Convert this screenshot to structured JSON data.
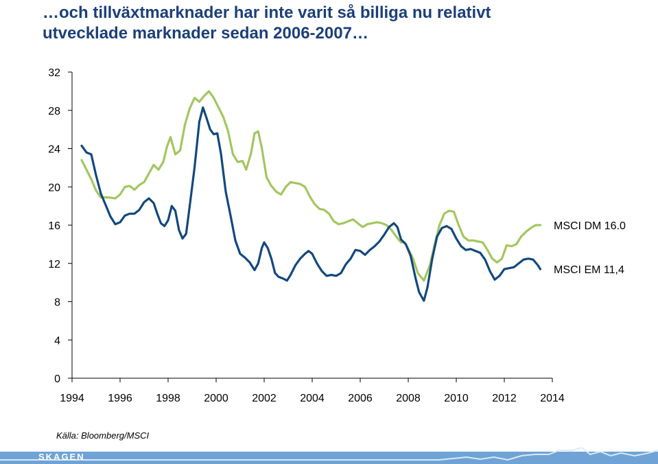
{
  "slide": {
    "title_line1": "…och tillväxtmarknader har inte varit så billiga nu relativt",
    "title_line2": "utvecklade marknader sedan 2006-2007…",
    "source": "Källa: Bloomberg/MSCI",
    "logo": "SKAGEN"
  },
  "colors": {
    "title": "#1b3f7a",
    "dm_line": "#a3c65f",
    "em_line": "#12487f",
    "footer_band": "#6fa3d6"
  },
  "chart_data": {
    "type": "line",
    "title": "",
    "xlabel": "",
    "ylabel": "",
    "xlim": [
      1994,
      2014
    ],
    "ylim": [
      0,
      32
    ],
    "x_ticks": [
      "1994",
      "1996",
      "1998",
      "2000",
      "2002",
      "2004",
      "2006",
      "2008",
      "2010",
      "2012",
      "2014"
    ],
    "y_ticks": [
      "0",
      "4",
      "8",
      "12",
      "16",
      "20",
      "24",
      "28",
      "32"
    ],
    "grid": false,
    "legend": "end-of-line labels, right",
    "series": [
      {
        "name": "MSCI DM 16.0",
        "color": "#a3c65f",
        "points": [
          [
            1994.4,
            22.8
          ],
          [
            1994.6,
            21.8
          ],
          [
            1994.8,
            20.8
          ],
          [
            1995.0,
            19.6
          ],
          [
            1995.2,
            18.9
          ],
          [
            1995.5,
            18.9
          ],
          [
            1995.8,
            18.8
          ],
          [
            1996.0,
            19.2
          ],
          [
            1996.2,
            20.0
          ],
          [
            1996.4,
            20.1
          ],
          [
            1996.6,
            19.7
          ],
          [
            1996.8,
            20.2
          ],
          [
            1997.0,
            20.5
          ],
          [
            1997.2,
            21.4
          ],
          [
            1997.4,
            22.3
          ],
          [
            1997.6,
            21.8
          ],
          [
            1997.8,
            22.6
          ],
          [
            1997.95,
            24.2
          ],
          [
            1998.1,
            25.2
          ],
          [
            1998.3,
            23.4
          ],
          [
            1998.5,
            23.8
          ],
          [
            1998.7,
            26.5
          ],
          [
            1998.9,
            28.2
          ],
          [
            1999.1,
            29.3
          ],
          [
            1999.3,
            28.9
          ],
          [
            1999.5,
            29.5
          ],
          [
            1999.7,
            30.0
          ],
          [
            1999.9,
            29.3
          ],
          [
            2000.1,
            28.3
          ],
          [
            2000.3,
            27.3
          ],
          [
            2000.5,
            25.8
          ],
          [
            2000.7,
            23.4
          ],
          [
            2000.9,
            22.6
          ],
          [
            2001.1,
            22.7
          ],
          [
            2001.25,
            21.8
          ],
          [
            2001.45,
            23.5
          ],
          [
            2001.6,
            25.6
          ],
          [
            2001.75,
            25.8
          ],
          [
            2001.9,
            24.1
          ],
          [
            2002.1,
            21.0
          ],
          [
            2002.3,
            20.1
          ],
          [
            2002.5,
            19.5
          ],
          [
            2002.7,
            19.2
          ],
          [
            2002.9,
            20.0
          ],
          [
            2003.1,
            20.5
          ],
          [
            2003.3,
            20.4
          ],
          [
            2003.5,
            20.3
          ],
          [
            2003.7,
            20.0
          ],
          [
            2003.9,
            19.0
          ],
          [
            2004.1,
            18.2
          ],
          [
            2004.3,
            17.7
          ],
          [
            2004.5,
            17.6
          ],
          [
            2004.7,
            17.2
          ],
          [
            2004.9,
            16.4
          ],
          [
            2005.1,
            16.1
          ],
          [
            2005.3,
            16.2
          ],
          [
            2005.5,
            16.4
          ],
          [
            2005.7,
            16.6
          ],
          [
            2005.9,
            16.2
          ],
          [
            2006.1,
            15.8
          ],
          [
            2006.3,
            16.1
          ],
          [
            2006.5,
            16.2
          ],
          [
            2006.7,
            16.3
          ],
          [
            2006.9,
            16.2
          ],
          [
            2007.1,
            16.0
          ],
          [
            2007.3,
            15.5
          ],
          [
            2007.5,
            14.8
          ],
          [
            2007.7,
            14.2
          ],
          [
            2007.85,
            14.2
          ],
          [
            2008.0,
            13.5
          ],
          [
            2008.2,
            12.5
          ],
          [
            2008.4,
            11.0
          ],
          [
            2008.65,
            10.2
          ],
          [
            2008.9,
            11.8
          ],
          [
            2009.1,
            14.0
          ],
          [
            2009.3,
            16.0
          ],
          [
            2009.5,
            17.2
          ],
          [
            2009.7,
            17.5
          ],
          [
            2009.9,
            17.4
          ],
          [
            2010.1,
            16.0
          ],
          [
            2010.3,
            14.8
          ],
          [
            2010.5,
            14.4
          ],
          [
            2010.7,
            14.4
          ],
          [
            2010.9,
            14.3
          ],
          [
            2011.1,
            14.2
          ],
          [
            2011.3,
            13.4
          ],
          [
            2011.5,
            12.5
          ],
          [
            2011.7,
            12.1
          ],
          [
            2011.9,
            12.5
          ],
          [
            2012.1,
            13.9
          ],
          [
            2012.3,
            13.8
          ],
          [
            2012.5,
            14.0
          ],
          [
            2012.7,
            14.8
          ],
          [
            2012.9,
            15.3
          ],
          [
            2013.1,
            15.7
          ],
          [
            2013.3,
            16.0
          ],
          [
            2013.5,
            16.0
          ]
        ]
      },
      {
        "name": "MSCI EM 11,4",
        "color": "#12487f",
        "points": [
          [
            1994.4,
            24.3
          ],
          [
            1994.6,
            23.6
          ],
          [
            1994.8,
            23.4
          ],
          [
            1995.0,
            21.2
          ],
          [
            1995.2,
            19.3
          ],
          [
            1995.4,
            18.1
          ],
          [
            1995.6,
            16.9
          ],
          [
            1995.8,
            16.1
          ],
          [
            1996.0,
            16.3
          ],
          [
            1996.2,
            17.0
          ],
          [
            1996.4,
            17.2
          ],
          [
            1996.6,
            17.2
          ],
          [
            1996.8,
            17.6
          ],
          [
            1997.0,
            18.4
          ],
          [
            1997.2,
            18.8
          ],
          [
            1997.4,
            18.3
          ],
          [
            1997.55,
            17.2
          ],
          [
            1997.7,
            16.2
          ],
          [
            1997.85,
            15.9
          ],
          [
            1998.0,
            16.5
          ],
          [
            1998.15,
            18.0
          ],
          [
            1998.3,
            17.5
          ],
          [
            1998.45,
            15.5
          ],
          [
            1998.6,
            14.6
          ],
          [
            1998.75,
            15.1
          ],
          [
            1998.9,
            18.0
          ],
          [
            1999.1,
            22.0
          ],
          [
            1999.3,
            26.8
          ],
          [
            1999.45,
            28.3
          ],
          [
            1999.6,
            27.2
          ],
          [
            1999.75,
            26.0
          ],
          [
            1999.9,
            25.5
          ],
          [
            2000.05,
            25.6
          ],
          [
            2000.2,
            23.5
          ],
          [
            2000.4,
            19.5
          ],
          [
            2000.6,
            17.0
          ],
          [
            2000.8,
            14.4
          ],
          [
            2001.0,
            13.0
          ],
          [
            2001.2,
            12.6
          ],
          [
            2001.4,
            12.1
          ],
          [
            2001.6,
            11.3
          ],
          [
            2001.75,
            12.0
          ],
          [
            2001.9,
            13.6
          ],
          [
            2002.0,
            14.2
          ],
          [
            2002.15,
            13.6
          ],
          [
            2002.3,
            12.5
          ],
          [
            2002.45,
            11.0
          ],
          [
            2002.6,
            10.6
          ],
          [
            2002.8,
            10.4
          ],
          [
            2002.95,
            10.2
          ],
          [
            2003.1,
            10.8
          ],
          [
            2003.3,
            11.8
          ],
          [
            2003.5,
            12.5
          ],
          [
            2003.7,
            13.0
          ],
          [
            2003.85,
            13.3
          ],
          [
            2004.0,
            13.0
          ],
          [
            2004.2,
            12.0
          ],
          [
            2004.4,
            11.2
          ],
          [
            2004.6,
            10.7
          ],
          [
            2004.8,
            10.8
          ],
          [
            2005.0,
            10.7
          ],
          [
            2005.2,
            11.0
          ],
          [
            2005.4,
            11.9
          ],
          [
            2005.6,
            12.5
          ],
          [
            2005.8,
            13.4
          ],
          [
            2006.0,
            13.3
          ],
          [
            2006.2,
            12.9
          ],
          [
            2006.4,
            13.4
          ],
          [
            2006.6,
            13.8
          ],
          [
            2006.8,
            14.3
          ],
          [
            2007.0,
            15.0
          ],
          [
            2007.2,
            15.8
          ],
          [
            2007.4,
            16.2
          ],
          [
            2007.55,
            15.8
          ],
          [
            2007.7,
            14.5
          ],
          [
            2007.9,
            14.0
          ],
          [
            2008.1,
            12.8
          ],
          [
            2008.3,
            10.5
          ],
          [
            2008.45,
            9.0
          ],
          [
            2008.65,
            8.1
          ],
          [
            2008.8,
            9.5
          ],
          [
            2009.0,
            12.5
          ],
          [
            2009.2,
            14.8
          ],
          [
            2009.4,
            15.7
          ],
          [
            2009.6,
            15.9
          ],
          [
            2009.8,
            15.6
          ],
          [
            2010.0,
            14.6
          ],
          [
            2010.2,
            13.8
          ],
          [
            2010.4,
            13.4
          ],
          [
            2010.6,
            13.5
          ],
          [
            2010.8,
            13.3
          ],
          [
            2011.0,
            13.1
          ],
          [
            2011.2,
            12.4
          ],
          [
            2011.4,
            11.2
          ],
          [
            2011.6,
            10.3
          ],
          [
            2011.8,
            10.7
          ],
          [
            2012.0,
            11.4
          ],
          [
            2012.2,
            11.5
          ],
          [
            2012.4,
            11.6
          ],
          [
            2012.6,
            12.0
          ],
          [
            2012.8,
            12.4
          ],
          [
            2013.0,
            12.5
          ],
          [
            2013.2,
            12.4
          ],
          [
            2013.4,
            11.8
          ],
          [
            2013.5,
            11.4
          ]
        ]
      }
    ]
  }
}
